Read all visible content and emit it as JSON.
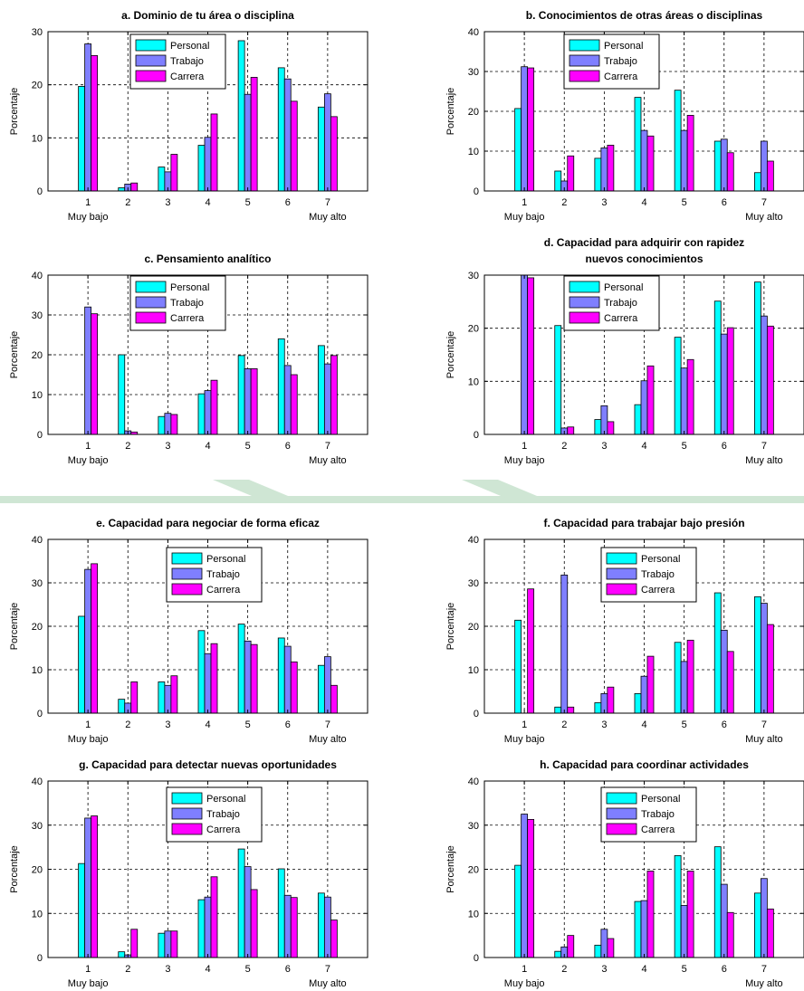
{
  "colors": {
    "personal": "#00ffff",
    "trabajo": "#7f7fff",
    "carrera": "#ff00ff",
    "watermark": "#cfe6d4"
  },
  "legend": [
    "Personal",
    "Trabajo",
    "Carrera"
  ],
  "chart_data": [
    {
      "type": "bar",
      "title": [
        "a. Dominio de tu área o disciplina"
      ],
      "ylabel": "Porcentaje",
      "ylim": [
        0,
        30
      ],
      "yticks": [
        0,
        10,
        20,
        30
      ],
      "categories": [
        "1",
        "2",
        "3",
        "4",
        "5",
        "6",
        "7"
      ],
      "xsub": [
        "Muy bajo",
        "Muy alto"
      ],
      "series": [
        {
          "name": "Personal",
          "values": [
            19.7,
            0.6,
            4.5,
            8.6,
            28.3,
            23.2,
            15.8
          ]
        },
        {
          "name": "Trabajo",
          "values": [
            27.7,
            1.3,
            3.6,
            10.1,
            18.2,
            21.1,
            18.3
          ]
        },
        {
          "name": "Carrera",
          "values": [
            25.5,
            1.5,
            6.9,
            14.5,
            21.4,
            16.9,
            14.0
          ]
        }
      ]
    },
    {
      "type": "bar",
      "title": [
        "b. Conocimientos de otras áreas o disciplinas"
      ],
      "ylabel": "Porcentaje",
      "ylim": [
        0,
        40
      ],
      "yticks": [
        0,
        10,
        20,
        30,
        40
      ],
      "categories": [
        "1",
        "2",
        "3",
        "4",
        "5",
        "6",
        "7"
      ],
      "xsub": [
        "Muy bajo",
        "Muy alto"
      ],
      "series": [
        {
          "name": "Personal",
          "values": [
            20.7,
            5.0,
            8.2,
            23.5,
            25.3,
            12.5,
            4.6
          ]
        },
        {
          "name": "Trabajo",
          "values": [
            31.2,
            2.5,
            10.8,
            15.2,
            15.2,
            13.0,
            12.5
          ]
        },
        {
          "name": "Carrera",
          "values": [
            30.9,
            8.8,
            11.5,
            13.8,
            19.0,
            9.6,
            7.5
          ]
        }
      ]
    },
    {
      "type": "bar",
      "title": [
        "c. Pensamiento analítico"
      ],
      "ylabel": "Porcentaje",
      "ylim": [
        0,
        40
      ],
      "yticks": [
        0,
        10,
        20,
        30,
        40
      ],
      "categories": [
        "1",
        "2",
        "3",
        "4",
        "5",
        "6",
        "7"
      ],
      "xsub": [
        "Muy bajo",
        "Muy alto"
      ],
      "series": [
        {
          "name": "Personal",
          "values": [
            0,
            20.0,
            4.5,
            10.2,
            19.8,
            24.0,
            22.3
          ]
        },
        {
          "name": "Trabajo",
          "values": [
            32.0,
            0.9,
            5.3,
            11.0,
            16.5,
            17.3,
            17.7
          ]
        },
        {
          "name": "Carrera",
          "values": [
            30.3,
            0.6,
            5.0,
            13.6,
            16.5,
            15.0,
            19.8
          ]
        }
      ]
    },
    {
      "type": "bar",
      "title": [
        "d. Capacidad para adquirir con rapidez",
        "nuevos conocimientos"
      ],
      "ylabel": "Porcentaje",
      "ylim": [
        0,
        30
      ],
      "yticks": [
        0,
        10,
        20,
        30
      ],
      "categories": [
        "1",
        "2",
        "3",
        "4",
        "5",
        "6",
        "7"
      ],
      "xsub": [
        "Muy bajo",
        "Muy alto"
      ],
      "series": [
        {
          "name": "Personal",
          "values": [
            0,
            20.5,
            2.8,
            5.6,
            18.3,
            25.1,
            28.7
          ]
        },
        {
          "name": "Trabajo",
          "values": [
            30.2,
            1.2,
            5.4,
            10.1,
            12.5,
            18.9,
            22.3
          ]
        },
        {
          "name": "Carrera",
          "values": [
            29.5,
            1.4,
            2.4,
            12.9,
            14.1,
            20.1,
            20.4
          ]
        }
      ]
    },
    {
      "type": "bar",
      "title": [
        "e. Capacidad para negociar de forma eficaz"
      ],
      "ylabel": "Porcentaje",
      "ylim": [
        0,
        40
      ],
      "yticks": [
        0,
        10,
        20,
        30,
        40
      ],
      "categories": [
        "1",
        "2",
        "3",
        "4",
        "5",
        "6",
        "7"
      ],
      "xsub": [
        "Muy bajo",
        "Muy alto"
      ],
      "series": [
        {
          "name": "Personal",
          "values": [
            22.3,
            3.2,
            7.2,
            19.0,
            20.5,
            17.3,
            11.0
          ]
        },
        {
          "name": "Trabajo",
          "values": [
            33.1,
            2.3,
            6.4,
            13.7,
            16.6,
            15.4,
            13.0
          ]
        },
        {
          "name": "Carrera",
          "values": [
            34.4,
            7.2,
            8.6,
            16.0,
            15.8,
            11.8,
            6.4
          ]
        }
      ]
    },
    {
      "type": "bar",
      "title": [
        "f. Capacidad para trabajar bajo presión"
      ],
      "ylabel": "Porcentaje",
      "ylim": [
        0,
        40
      ],
      "yticks": [
        0,
        10,
        20,
        30,
        40
      ],
      "categories": [
        "1",
        "2",
        "3",
        "4",
        "5",
        "6",
        "7"
      ],
      "xsub": [
        "Muy bajo",
        "Muy alto"
      ],
      "series": [
        {
          "name": "Personal",
          "values": [
            21.4,
            1.4,
            2.4,
            4.5,
            16.3,
            27.7,
            26.8
          ]
        },
        {
          "name": "Trabajo",
          "values": [
            0,
            31.8,
            4.5,
            8.5,
            11.9,
            19.1,
            25.3
          ]
        },
        {
          "name": "Carrera",
          "values": [
            28.6,
            1.4,
            6.0,
            13.1,
            16.8,
            14.2,
            20.4
          ]
        }
      ]
    },
    {
      "type": "bar",
      "title": [
        "g. Capacidad para detectar nuevas oportunidades"
      ],
      "ylabel": "Porcentaje",
      "ylim": [
        0,
        40
      ],
      "yticks": [
        0,
        10,
        20,
        30,
        40
      ],
      "categories": [
        "1",
        "2",
        "3",
        "4",
        "5",
        "6",
        "7"
      ],
      "xsub": [
        "Muy bajo",
        "Muy alto"
      ],
      "series": [
        {
          "name": "Personal",
          "values": [
            21.3,
            1.3,
            5.5,
            13.1,
            24.6,
            20.1,
            14.6
          ]
        },
        {
          "name": "Trabajo",
          "values": [
            31.6,
            0.6,
            6.0,
            13.7,
            20.6,
            14.1,
            13.7
          ]
        },
        {
          "name": "Carrera",
          "values": [
            32.1,
            6.4,
            6.0,
            18.3,
            15.4,
            13.6,
            8.5
          ]
        }
      ]
    },
    {
      "type": "bar",
      "title": [
        "h. Capacidad para coordinar actividades"
      ],
      "ylabel": "Porcentaje",
      "ylim": [
        0,
        40
      ],
      "yticks": [
        0,
        10,
        20,
        30,
        40
      ],
      "categories": [
        "1",
        "2",
        "3",
        "4",
        "5",
        "6",
        "7"
      ],
      "xsub": [
        "Muy bajo",
        "Muy alto"
      ],
      "series": [
        {
          "name": "Personal",
          "values": [
            20.9,
            1.4,
            2.8,
            12.7,
            23.1,
            25.1,
            14.6
          ]
        },
        {
          "name": "Trabajo",
          "values": [
            32.5,
            2.4,
            6.4,
            12.9,
            11.8,
            16.6,
            17.9
          ]
        },
        {
          "name": "Carrera",
          "values": [
            31.3,
            5.0,
            4.3,
            19.6,
            19.6,
            10.2,
            11.0
          ]
        }
      ]
    }
  ]
}
